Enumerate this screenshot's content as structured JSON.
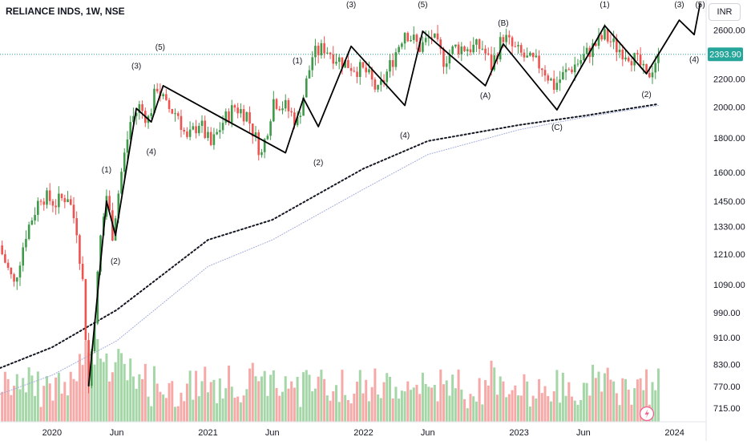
{
  "symbol_title": "RELIANCE INDS, 1W, NSE",
  "currency_label": "INR",
  "last_price_label": "2393.90",
  "colors": {
    "up": "#26a69a",
    "up_candle": "#3f9a4a",
    "down": "#ef5350",
    "volume_up": "#a5d6a7",
    "volume_down": "#f7a9a7",
    "ma_black": "#131722",
    "ma_lavender": "#9fa8da",
    "wave_line": "#000000",
    "last_price_bg": "#26a69a",
    "axis_text": "#131722"
  },
  "chart_data": {
    "type": "candlestick",
    "interval": "1W",
    "y_scale": "log",
    "y_ticks": [
      "2600.00",
      "2200.00",
      "2000.00",
      "1800.00",
      "1600.00",
      "1450.00",
      "1330.00",
      "1210.00",
      "1090.00",
      "990.00",
      "910.00",
      "830.00",
      "770.00",
      "715.00"
    ],
    "x_ticks": [
      "2020",
      "Jun",
      "2021",
      "Jun",
      "2022",
      "Jun",
      "2023",
      "Jun",
      "2024"
    ],
    "x_tick_dates": [
      "2020-01-01",
      "2020-06-01",
      "2021-01-01",
      "2021-06-01",
      "2022-01-01",
      "2022-06-01",
      "2023-01-01",
      "2023-06-01",
      "2024-01-01"
    ],
    "x_range": [
      "2019-09-01",
      "2024-03-15"
    ],
    "y_range": [
      690,
      2850
    ],
    "last_price": 2393.9,
    "price_path": [
      [
        "2019-09-06",
        1210
      ],
      [
        "2019-10-04",
        1090
      ],
      [
        "2019-11-01",
        1300
      ],
      [
        "2019-12-06",
        1480
      ],
      [
        "2020-01-10",
        1440
      ],
      [
        "2020-02-07",
        1480
      ],
      [
        "2020-02-28",
        1320
      ],
      [
        "2020-03-13",
        1100
      ],
      [
        "2020-03-27",
        770
      ],
      [
        "2020-04-10",
        980
      ],
      [
        "2020-04-24",
        1280
      ],
      [
        "2020-05-08",
        1480
      ],
      [
        "2020-05-22",
        1300
      ],
      [
        "2020-06-12",
        1600
      ],
      [
        "2020-07-03",
        1900
      ],
      [
        "2020-07-24",
        2000
      ],
      [
        "2020-08-14",
        1920
      ],
      [
        "2020-09-04",
        2150
      ],
      [
        "2020-09-25",
        2000
      ],
      [
        "2020-10-23",
        1950
      ],
      [
        "2020-11-13",
        1780
      ],
      [
        "2020-12-11",
        1900
      ],
      [
        "2021-01-08",
        1750
      ],
      [
        "2021-02-05",
        1900
      ],
      [
        "2021-03-05",
        2000
      ],
      [
        "2021-04-02",
        1950
      ],
      [
        "2021-05-07",
        1700
      ],
      [
        "2021-06-04",
        2050
      ],
      [
        "2021-07-02",
        2000
      ],
      [
        "2021-07-30",
        1900
      ],
      [
        "2021-09-03",
        2380
      ],
      [
        "2021-10-01",
        2450
      ],
      [
        "2021-11-05",
        2350
      ],
      [
        "2021-12-03",
        2300
      ],
      [
        "2022-01-07",
        2250
      ],
      [
        "2022-02-04",
        2100
      ],
      [
        "2022-03-04",
        2300
      ],
      [
        "2022-04-08",
        2600
      ],
      [
        "2022-05-13",
        2450
      ],
      [
        "2022-06-10",
        2550
      ],
      [
        "2022-07-08",
        2350
      ],
      [
        "2022-08-05",
        2450
      ],
      [
        "2022-09-02",
        2450
      ],
      [
        "2022-10-07",
        2450
      ],
      [
        "2022-10-28",
        2300
      ],
      [
        "2022-11-25",
        2550
      ],
      [
        "2022-12-16",
        2450
      ],
      [
        "2023-01-20",
        2350
      ],
      [
        "2023-02-24",
        2300
      ],
      [
        "2023-03-24",
        2150
      ],
      [
        "2023-04-21",
        2250
      ],
      [
        "2023-05-26",
        2350
      ],
      [
        "2023-06-23",
        2450
      ],
      [
        "2023-07-21",
        2550
      ],
      [
        "2023-08-18",
        2450
      ],
      [
        "2023-09-15",
        2400
      ],
      [
        "2023-10-13",
        2300
      ],
      [
        "2023-10-27",
        2200
      ],
      [
        "2023-11-24",
        2393.9
      ]
    ],
    "moving_averages": [
      {
        "style": "dotted-black",
        "points": [
          [
            "2019-09-01",
            820
          ],
          [
            "2020-01-01",
            880
          ],
          [
            "2020-06-01",
            1000
          ],
          [
            "2021-01-01",
            1270
          ],
          [
            "2021-06-01",
            1360
          ],
          [
            "2022-01-01",
            1620
          ],
          [
            "2022-06-01",
            1780
          ],
          [
            "2023-01-01",
            1880
          ],
          [
            "2023-06-01",
            1940
          ],
          [
            "2023-11-24",
            2020
          ]
        ]
      },
      {
        "style": "dotted-lavender",
        "points": [
          [
            "2019-09-01",
            750
          ],
          [
            "2020-01-01",
            800
          ],
          [
            "2020-06-01",
            900
          ],
          [
            "2021-01-01",
            1160
          ],
          [
            "2021-06-01",
            1270
          ],
          [
            "2022-01-01",
            1510
          ],
          [
            "2022-06-01",
            1700
          ],
          [
            "2023-01-01",
            1850
          ],
          [
            "2023-06-01",
            1930
          ],
          [
            "2023-11-24",
            2010
          ]
        ]
      }
    ],
    "wave_path": [
      [
        "2020-03-27",
        770
      ],
      [
        "2020-05-08",
        1450
      ],
      [
        "2020-05-29",
        1290
      ],
      [
        "2020-07-17",
        1990
      ],
      [
        "2020-08-21",
        1900
      ],
      [
        "2020-09-18",
        2150
      ],
      [
        "2021-07-02",
        1710
      ],
      [
        "2021-08-13",
        2060
      ],
      [
        "2021-09-17",
        1870
      ],
      [
        "2021-12-03",
        2460
      ],
      [
        "2022-04-08",
        2010
      ],
      [
        "2022-05-20",
        2590
      ],
      [
        "2022-10-14",
        2150
      ],
      [
        "2022-11-25",
        2480
      ],
      [
        "2023-03-31",
        1980
      ],
      [
        "2023-07-21",
        2640
      ],
      [
        "2023-10-27",
        2240
      ],
      [
        "2024-01-12",
        2690
      ],
      [
        "2024-02-16",
        2560
      ],
      [
        "2024-03-01",
        2850
      ]
    ],
    "annotations": [
      {
        "text": "(1)",
        "date": "2020-05-08",
        "price": 1600
      },
      {
        "text": "(2)",
        "date": "2020-05-29",
        "price": 1170
      },
      {
        "text": "(3)",
        "date": "2020-07-17",
        "price": 2280
      },
      {
        "text": "(4)",
        "date": "2020-08-21",
        "price": 1700
      },
      {
        "text": "(5)",
        "date": "2020-09-11",
        "price": 2430
      },
      {
        "text": "(1)",
        "date": "2021-07-30",
        "price": 2320
      },
      {
        "text": "(2)",
        "date": "2021-09-17",
        "price": 1640
      },
      {
        "text": "(3)",
        "date": "2021-12-03",
        "price": 2890
      },
      {
        "text": "(4)",
        "date": "2022-04-08",
        "price": 1800
      },
      {
        "text": "(5)",
        "date": "2022-05-20",
        "price": 2980
      },
      {
        "text": "(A)",
        "date": "2022-10-14",
        "price": 2060
      },
      {
        "text": "(B)",
        "date": "2022-11-25",
        "price": 2640
      },
      {
        "text": "(C)",
        "date": "2023-03-31",
        "price": 1850
      },
      {
        "text": "(1)",
        "date": "2023-07-21",
        "price": 2890
      },
      {
        "text": "(2)",
        "date": "2023-10-27",
        "price": 2070
      },
      {
        "text": "(3)",
        "date": "2024-01-12",
        "price": 2880
      },
      {
        "text": "(4)",
        "date": "2024-02-16",
        "price": 2330
      },
      {
        "text": "(5)",
        "date": "2024-03-01",
        "price": 3050
      }
    ],
    "volume_panel": {
      "max_relative": 1.0
    },
    "grid": false,
    "legend": "none"
  }
}
